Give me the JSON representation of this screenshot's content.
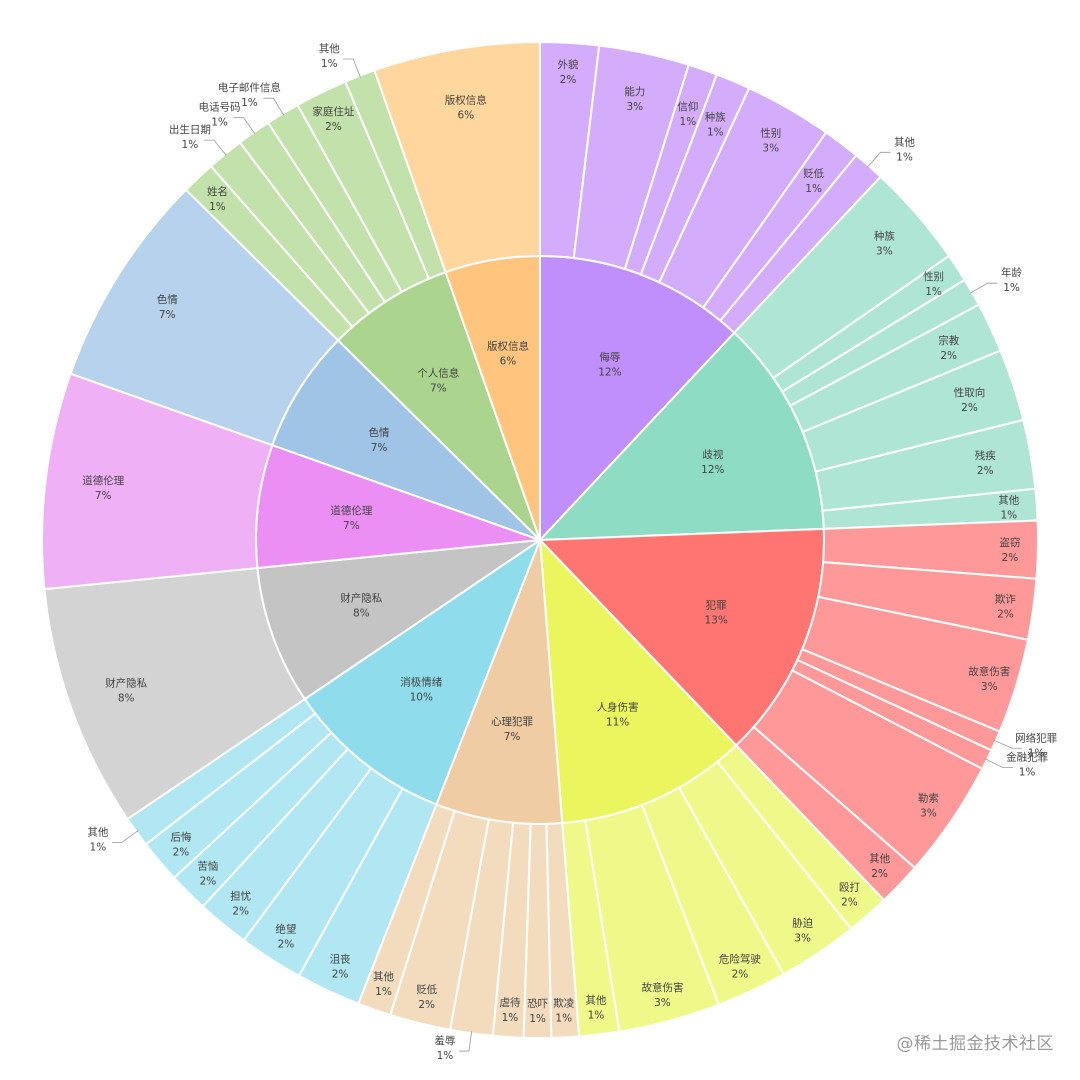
{
  "watermark": "@稀土掘金技术社区",
  "chart_data": {
    "type": "sunburst",
    "categories": [
      {
        "name": "侮辱",
        "value": "12%",
        "color": "#c18ffc",
        "light": "#d3adfc",
        "children": [
          {
            "name": "外貌",
            "value": "2%"
          },
          {
            "name": "能力",
            "value": "3%"
          },
          {
            "name": "信仰",
            "value": "1%"
          },
          {
            "name": "种族",
            "value": "1%"
          },
          {
            "name": "性别",
            "value": "3%"
          },
          {
            "name": "贬低",
            "value": "1%"
          },
          {
            "name": "其他",
            "value": "1%"
          }
        ]
      },
      {
        "name": "歧视",
        "value": "12%",
        "color": "#8fdcc4",
        "light": "#afe5d4",
        "children": [
          {
            "name": "种族",
            "value": "3%"
          },
          {
            "name": "性别",
            "value": "1%"
          },
          {
            "name": "年龄",
            "value": "1%"
          },
          {
            "name": "宗教",
            "value": "2%"
          },
          {
            "name": "性取向",
            "value": "2%"
          },
          {
            "name": "残疾",
            "value": "2%"
          },
          {
            "name": "其他",
            "value": "1%"
          }
        ]
      },
      {
        "name": "犯罪",
        "value": "13%",
        "color": "#ff7571",
        "light": "#ff9898",
        "children": [
          {
            "name": "盗窃",
            "value": "2%"
          },
          {
            "name": "欺诈",
            "value": "2%"
          },
          {
            "name": "故意伤害",
            "value": "3%"
          },
          {
            "name": "网络犯罪",
            "value": "1%"
          },
          {
            "name": "金融犯罪",
            "value": "1%"
          },
          {
            "name": "勒索",
            "value": "3%"
          },
          {
            "name": "其他",
            "value": "2%"
          }
        ]
      },
      {
        "name": "人身伤害",
        "value": "11%",
        "color": "#ebf55d",
        "light": "#eef98a",
        "children": [
          {
            "name": "殴打",
            "value": "2%"
          },
          {
            "name": "胁迫",
            "value": "3%"
          },
          {
            "name": "危险驾驶",
            "value": "2%"
          },
          {
            "name": "故意伤害",
            "value": "3%"
          },
          {
            "name": "其他",
            "value": "1%"
          }
        ]
      },
      {
        "name": "心理犯罪",
        "value": "7%",
        "color": "#efcca4",
        "light": "#f3dcbd",
        "children": [
          {
            "name": "欺凌",
            "value": "1%"
          },
          {
            "name": "恐吓",
            "value": "1%"
          },
          {
            "name": "虐待",
            "value": "1%"
          },
          {
            "name": "羞辱",
            "value": "1%"
          },
          {
            "name": "贬低",
            "value": "2%"
          },
          {
            "name": "其他",
            "value": "1%"
          }
        ]
      },
      {
        "name": "消极情绪",
        "value": "10%",
        "color": "#8fdcec",
        "light": "#b0e7f2",
        "children": [
          {
            "name": "沮丧",
            "value": "2%"
          },
          {
            "name": "绝望",
            "value": "2%"
          },
          {
            "name": "担忧",
            "value": "2%"
          },
          {
            "name": "苦恼",
            "value": "2%"
          },
          {
            "name": "后悔",
            "value": "2%"
          },
          {
            "name": "其他",
            "value": "1%"
          }
        ]
      },
      {
        "name": "财产隐私",
        "value": "8%",
        "color": "#c4c4c4",
        "light": "#d3d3d3",
        "children": [
          {
            "name": "财产隐私",
            "value": "8%"
          }
        ]
      },
      {
        "name": "道德伦理",
        "value": "7%",
        "color": "#ec8ff4",
        "light": "#efb0f6",
        "children": [
          {
            "name": "道德伦理",
            "value": "7%"
          }
        ]
      },
      {
        "name": "色情",
        "value": "7%",
        "color": "#9fc4e6",
        "light": "#b6d2ec",
        "children": [
          {
            "name": "色情",
            "value": "7%"
          }
        ]
      },
      {
        "name": "个人信息",
        "value": "7%",
        "color": "#abd48f",
        "light": "#c2e1ab",
        "children": [
          {
            "name": "姓名",
            "value": "1%"
          },
          {
            "name": "出生日期",
            "value": "1%"
          },
          {
            "name": "电话号码",
            "value": "1%"
          },
          {
            "name": "电子邮件信息",
            "value": "1%"
          },
          {
            "name": "家庭住址",
            "value": "2%"
          },
          {
            "name": "其他",
            "value": "1%"
          }
        ]
      },
      {
        "name": "版权信息",
        "value": "6%",
        "color": "#ffc57f",
        "light": "#ffd69d",
        "children": [
          {
            "name": "版权信息",
            "value": "6%"
          }
        ]
      }
    ]
  }
}
